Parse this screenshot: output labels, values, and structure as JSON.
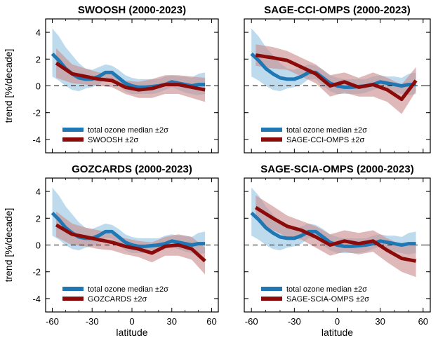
{
  "figure": {
    "ylabel": "trend [%/decade]",
    "xlabel": "latitude",
    "xticks": [
      -60,
      -30,
      0,
      30,
      60
    ],
    "yticks": [
      -4,
      -2,
      0,
      2,
      4
    ],
    "xlim": [
      -65,
      65
    ],
    "ylim": [
      -5,
      5
    ],
    "colors": {
      "reference_line": "#1f77b4",
      "reference_band": "#a8cfe8",
      "dataset_line": "#8b0a0a",
      "dataset_band": "#c98a8a"
    }
  },
  "chart_data": [
    {
      "type": "line",
      "title": "SWOOSH (2000-2023)",
      "legend": [
        "total ozone median ±2σ",
        "SWOOSH ±2σ"
      ],
      "x": [
        -60,
        -55,
        -50,
        -45,
        -40,
        -35,
        -30,
        -25,
        -20,
        -15,
        -10,
        -5,
        0,
        5,
        10,
        15,
        20,
        25,
        30,
        35,
        40,
        45,
        50,
        55
      ],
      "series": [
        {
          "name": "total ozone median",
          "values": [
            2.4,
            1.9,
            1.3,
            0.9,
            0.6,
            0.5,
            0.5,
            0.7,
            1.0,
            1.0,
            0.6,
            0.2,
            0.0,
            -0.1,
            -0.1,
            -0.05,
            0.0,
            0.1,
            0.3,
            0.2,
            0.1,
            0.0,
            0.1,
            0.1
          ],
          "lower": [
            0.7,
            0.4,
            0.0,
            -0.3,
            -0.4,
            -0.2,
            -0.1,
            0.1,
            0.5,
            0.5,
            0.0,
            -0.4,
            -0.6,
            -0.6,
            -0.6,
            -0.6,
            -0.5,
            -0.3,
            -0.1,
            -0.3,
            -0.5,
            -0.6,
            -0.7,
            -0.6
          ],
          "upper": [
            4.3,
            3.7,
            2.9,
            2.3,
            1.7,
            1.3,
            1.2,
            1.4,
            1.6,
            1.5,
            1.2,
            0.8,
            0.6,
            0.5,
            0.5,
            0.5,
            0.5,
            0.7,
            0.8,
            0.7,
            0.7,
            0.6,
            0.9,
            1.0
          ]
        },
        {
          "name": "SWOOSH",
          "x": [
            -57,
            -45,
            -35,
            -25,
            -15,
            -5,
            5,
            15,
            25,
            35,
            45,
            55
          ],
          "values": [
            1.7,
            0.9,
            0.7,
            0.5,
            0.4,
            -0.1,
            -0.3,
            -0.2,
            0.1,
            0.1,
            -0.1,
            -0.3
          ],
          "lower": [
            0.6,
            0.2,
            0.1,
            0.0,
            -0.1,
            -0.6,
            -0.9,
            -0.9,
            -0.6,
            -0.6,
            -0.9,
            -1.2
          ],
          "upper": [
            2.8,
            1.6,
            1.3,
            1.0,
            0.9,
            0.4,
            0.3,
            0.5,
            0.8,
            0.8,
            0.7,
            0.6
          ]
        }
      ]
    },
    {
      "type": "line",
      "title": "SAGE-CCI-OMPS (2000-2023)",
      "legend": [
        "total ozone median ±2σ",
        "SAGE-CCI-OMPS ±2σ"
      ],
      "x": [
        -60,
        -55,
        -50,
        -45,
        -40,
        -35,
        -30,
        -25,
        -20,
        -15,
        -10,
        -5,
        0,
        5,
        10,
        15,
        20,
        25,
        30,
        35,
        40,
        45,
        50,
        55
      ],
      "series": [
        {
          "name": "total ozone median",
          "values": [
            2.4,
            1.9,
            1.3,
            0.9,
            0.6,
            0.5,
            0.5,
            0.7,
            1.0,
            1.0,
            0.6,
            0.2,
            0.0,
            -0.1,
            -0.1,
            -0.05,
            0.0,
            0.1,
            0.3,
            0.2,
            0.1,
            0.0,
            0.1,
            0.1
          ],
          "lower": [
            0.7,
            0.4,
            0.0,
            -0.3,
            -0.4,
            -0.2,
            -0.1,
            0.1,
            0.5,
            0.5,
            0.0,
            -0.4,
            -0.6,
            -0.6,
            -0.6,
            -0.6,
            -0.5,
            -0.3,
            -0.1,
            -0.3,
            -0.5,
            -0.6,
            -0.7,
            -0.6
          ],
          "upper": [
            4.3,
            3.7,
            2.9,
            2.3,
            1.7,
            1.3,
            1.2,
            1.4,
            1.6,
            1.5,
            1.2,
            0.8,
            0.6,
            0.5,
            0.5,
            0.5,
            0.5,
            0.7,
            0.8,
            0.7,
            0.7,
            0.6,
            0.9,
            1.0
          ]
        },
        {
          "name": "SAGE-CCI-OMPS",
          "x": [
            -57,
            -45,
            -35,
            -25,
            -15,
            -5,
            5,
            15,
            25,
            35,
            45,
            55
          ],
          "values": [
            2.3,
            2.1,
            1.9,
            1.4,
            0.9,
            0.0,
            0.3,
            -0.1,
            0.1,
            -0.3,
            -1.0,
            0.4
          ],
          "lower": [
            1.5,
            1.3,
            1.2,
            0.7,
            0.2,
            -0.8,
            -0.5,
            -0.8,
            -0.8,
            -1.2,
            -2.1,
            -0.4
          ],
          "upper": [
            3.1,
            2.9,
            2.6,
            2.1,
            1.6,
            0.8,
            1.0,
            0.6,
            1.0,
            0.6,
            0.1,
            1.4
          ]
        }
      ]
    },
    {
      "type": "line",
      "title": "GOZCARDS (2000-2023)",
      "legend": [
        "total ozone median ±2σ",
        "GOZCARDS ±2σ"
      ],
      "x": [
        -60,
        -55,
        -50,
        -45,
        -40,
        -35,
        -30,
        -25,
        -20,
        -15,
        -10,
        -5,
        0,
        5,
        10,
        15,
        20,
        25,
        30,
        35,
        40,
        45,
        50,
        55
      ],
      "series": [
        {
          "name": "total ozone median",
          "values": [
            2.4,
            1.9,
            1.3,
            0.9,
            0.6,
            0.5,
            0.5,
            0.7,
            1.0,
            1.0,
            0.6,
            0.2,
            0.0,
            -0.1,
            -0.1,
            -0.05,
            0.0,
            0.1,
            0.3,
            0.2,
            0.1,
            0.0,
            0.1,
            0.1
          ],
          "lower": [
            0.7,
            0.4,
            0.0,
            -0.3,
            -0.4,
            -0.2,
            -0.1,
            0.1,
            0.5,
            0.5,
            0.0,
            -0.4,
            -0.6,
            -0.6,
            -0.6,
            -0.6,
            -0.5,
            -0.3,
            -0.1,
            -0.3,
            -0.5,
            -0.6,
            -0.7,
            -0.6
          ],
          "upper": [
            4.3,
            3.7,
            2.9,
            2.3,
            1.7,
            1.3,
            1.2,
            1.4,
            1.6,
            1.5,
            1.2,
            0.8,
            0.6,
            0.5,
            0.5,
            0.5,
            0.5,
            0.7,
            0.8,
            0.7,
            0.7,
            0.6,
            0.9,
            1.0
          ]
        },
        {
          "name": "GOZCARDS",
          "x": [
            -57,
            -45,
            -35,
            -25,
            -15,
            -5,
            5,
            15,
            25,
            35,
            45,
            55
          ],
          "values": [
            1.5,
            0.8,
            0.6,
            0.4,
            0.2,
            -0.1,
            -0.3,
            -0.6,
            -0.1,
            0.0,
            -0.3,
            -1.2
          ],
          "lower": [
            0.6,
            0.0,
            -0.1,
            -0.3,
            -0.4,
            -0.7,
            -0.9,
            -1.3,
            -0.8,
            -0.8,
            -1.1,
            -2.2
          ],
          "upper": [
            2.5,
            1.6,
            1.3,
            1.1,
            0.8,
            0.5,
            0.3,
            0.2,
            0.6,
            0.8,
            0.6,
            -0.2
          ]
        }
      ]
    },
    {
      "type": "line",
      "title": "SAGE-SCIA-OMPS (2000-2023)",
      "legend": [
        "total ozone median ±2σ",
        "SAGE-SCIA-OMPS ±2σ"
      ],
      "x": [
        -60,
        -55,
        -50,
        -45,
        -40,
        -35,
        -30,
        -25,
        -20,
        -15,
        -10,
        -5,
        0,
        5,
        10,
        15,
        20,
        25,
        30,
        35,
        40,
        45,
        50,
        55
      ],
      "series": [
        {
          "name": "total ozone median",
          "values": [
            2.4,
            1.9,
            1.3,
            0.9,
            0.6,
            0.5,
            0.5,
            0.7,
            1.0,
            1.0,
            0.6,
            0.2,
            0.0,
            -0.1,
            -0.1,
            -0.05,
            0.0,
            0.1,
            0.3,
            0.2,
            0.1,
            0.0,
            0.1,
            0.1
          ],
          "lower": [
            0.7,
            0.4,
            0.0,
            -0.3,
            -0.4,
            -0.2,
            -0.1,
            0.1,
            0.5,
            0.5,
            0.0,
            -0.4,
            -0.6,
            -0.6,
            -0.6,
            -0.6,
            -0.5,
            -0.3,
            -0.1,
            -0.3,
            -0.5,
            -0.6,
            -0.7,
            -0.6
          ],
          "upper": [
            4.3,
            3.7,
            2.9,
            2.3,
            1.7,
            1.3,
            1.2,
            1.4,
            1.6,
            1.5,
            1.2,
            0.8,
            0.6,
            0.5,
            0.5,
            0.5,
            0.5,
            0.7,
            0.8,
            0.7,
            0.7,
            0.6,
            0.9,
            1.0
          ]
        },
        {
          "name": "SAGE-SCIA-OMPS",
          "x": [
            -57,
            -45,
            -35,
            -25,
            -15,
            -5,
            5,
            15,
            25,
            35,
            45,
            55
          ],
          "values": [
            2.8,
            2.0,
            1.4,
            1.1,
            0.6,
            0.0,
            0.3,
            0.1,
            0.3,
            -0.4,
            -1.0,
            -1.2
          ],
          "lower": [
            1.9,
            1.1,
            0.6,
            0.4,
            -0.2,
            -0.8,
            -0.5,
            -0.7,
            -0.5,
            -1.3,
            -2.0,
            -2.4
          ],
          "upper": [
            3.7,
            2.9,
            2.2,
            1.8,
            1.4,
            0.8,
            1.1,
            0.9,
            1.1,
            0.5,
            0.0,
            0.0
          ]
        }
      ]
    }
  ]
}
